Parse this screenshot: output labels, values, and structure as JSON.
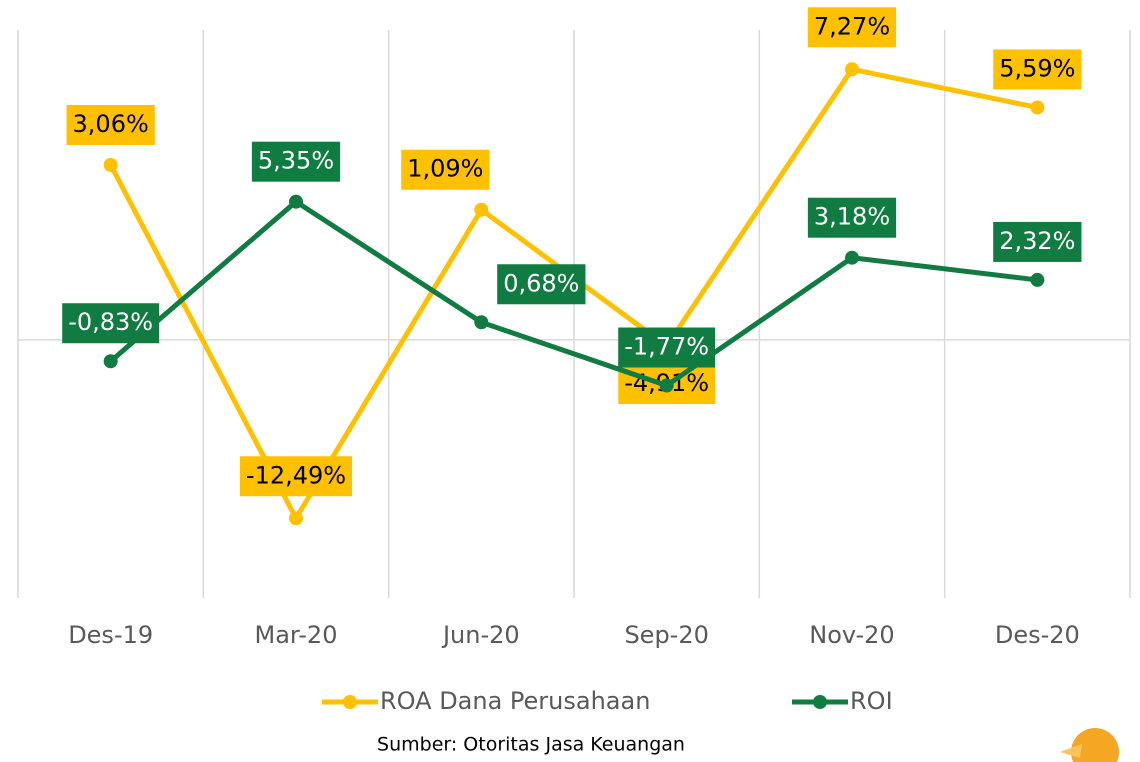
{
  "chart_data": {
    "type": "line",
    "categories": [
      "Des-19",
      "Mar-20",
      "Jun-20",
      "Sep-20",
      "Nov-20",
      "Des-20"
    ],
    "series": [
      {
        "name": "ROA Dana Perusahaan",
        "color": "#FFC000",
        "axis": "y2",
        "values": [
          3.06,
          -12.49,
          1.09,
          -4.91,
          7.27,
          5.59
        ],
        "value_labels": [
          "3,06%",
          "-12,49%",
          "1,09%",
          "-4,91%",
          "7,27%",
          "5,59%"
        ]
      },
      {
        "name": "ROI",
        "color": "#107C41",
        "values": [
          -0.83,
          5.35,
          0.68,
          -1.77,
          3.18,
          2.32
        ],
        "value_labels": [
          "-0,83%",
          "5,35%",
          "0,68%",
          "-1,77%",
          "3,18%",
          "2,32%"
        ]
      }
    ],
    "ylim": [
      -10,
      12
    ],
    "y2lim": [
      -16,
      9
    ],
    "grid": true,
    "legend": "bottom",
    "source": "Sumber: Otoritas Jasa Keuangan"
  }
}
